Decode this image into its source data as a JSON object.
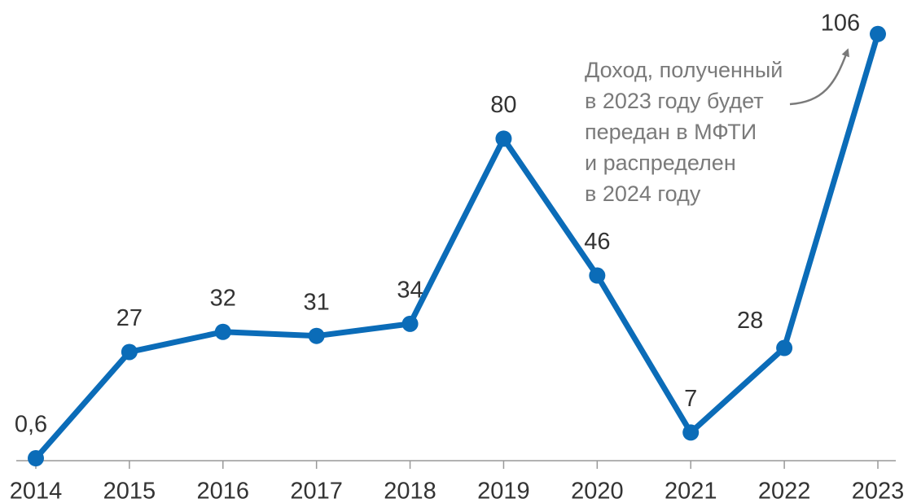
{
  "chart_data": {
    "type": "line",
    "categories": [
      "2014",
      "2015",
      "2016",
      "2017",
      "2018",
      "2019",
      "2020",
      "2021",
      "2022",
      "2023"
    ],
    "series": [
      {
        "color": "#0b6cb8",
        "values": [
          0.6,
          27,
          32,
          31,
          34,
          80,
          46,
          7,
          28,
          106
        ],
        "value_labels": [
          "0,6",
          "27",
          "32",
          "31",
          "34",
          "80",
          "46",
          "7",
          "28",
          "106"
        ]
      }
    ],
    "ylim": [
      0,
      110
    ],
    "annotation": [
      "Доход, полученный",
      "в 2023 году будет",
      "передан в МФТИ",
      "и распределен",
      "в 2024 году"
    ]
  }
}
